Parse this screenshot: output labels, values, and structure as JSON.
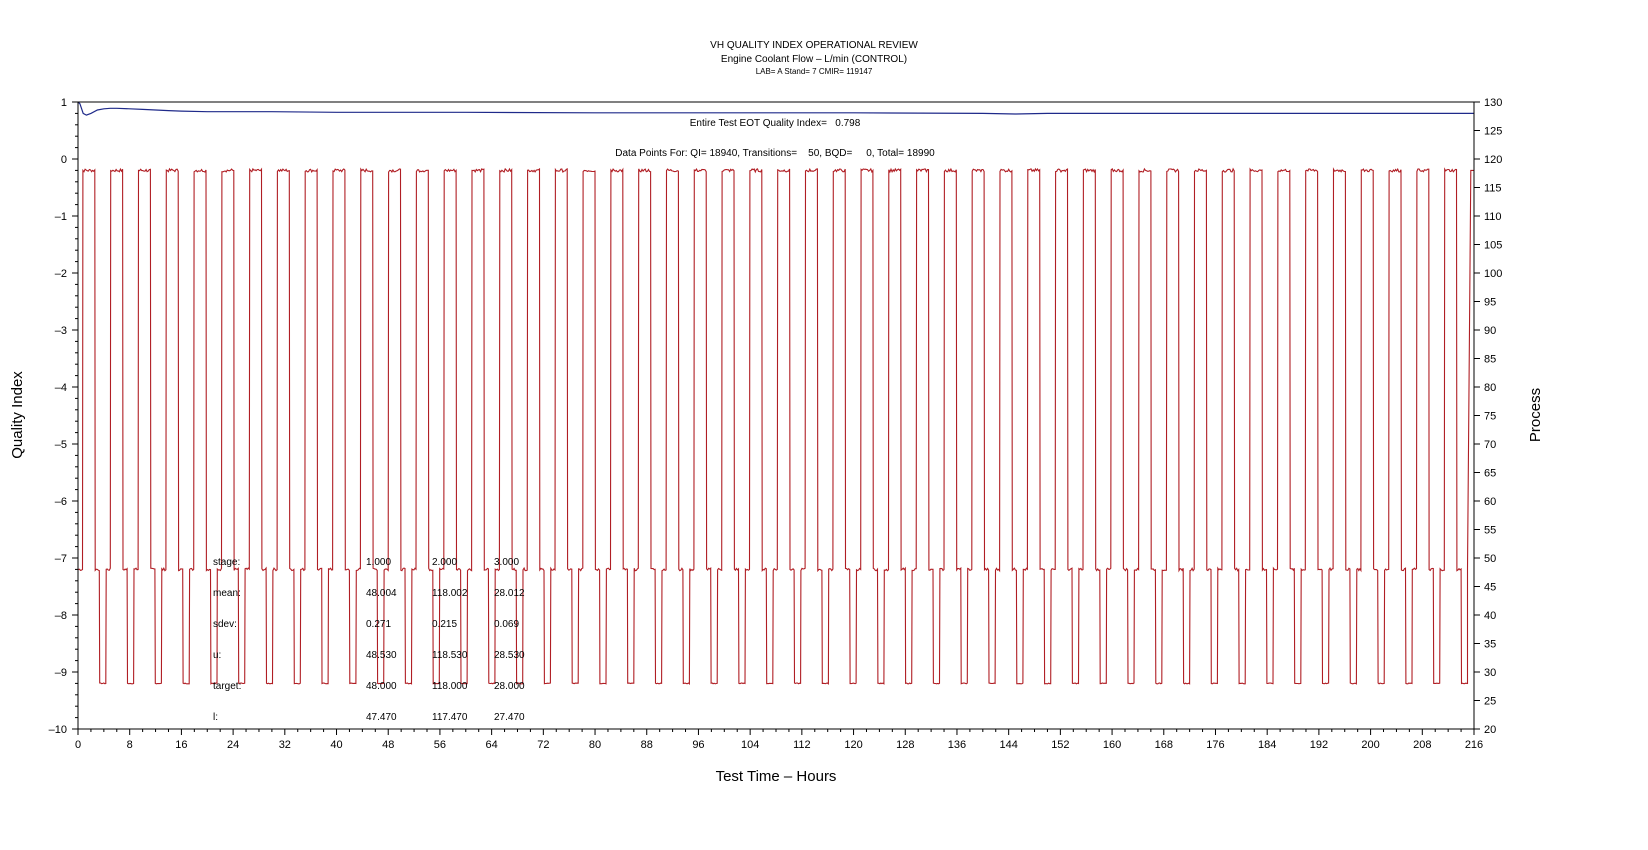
{
  "chart_data": {
    "type": "line",
    "title": "VH QUALITY INDEX OPERATIONAL REVIEW",
    "subtitle": "Engine Coolant Flow – L/min (CONTROL)",
    "subsubtitle": "LAB= A Stand= 7 CMIR= 119147",
    "xlabel": "Test Time – Hours",
    "ylabel_left": "Quality Index",
    "ylabel_right": "Process",
    "xlim": [
      0,
      216
    ],
    "ylim_left": [
      -10,
      1
    ],
    "ylim_right": [
      20,
      130
    ],
    "x_ticks": [
      0,
      8,
      16,
      24,
      32,
      40,
      48,
      56,
      64,
      72,
      80,
      88,
      96,
      104,
      112,
      120,
      128,
      136,
      144,
      152,
      160,
      168,
      176,
      184,
      192,
      200,
      208,
      216
    ],
    "y_ticks_left": [
      1,
      0,
      -1,
      -2,
      -3,
      -4,
      -5,
      -6,
      -7,
      -8,
      -9,
      -10
    ],
    "y_ticks_right": [
      130,
      125,
      120,
      115,
      110,
      105,
      100,
      95,
      90,
      85,
      80,
      75,
      70,
      65,
      60,
      55,
      50,
      45,
      40,
      35,
      30,
      25,
      20
    ],
    "grid": false,
    "annotations": {
      "eot_index": "Entire Test EOT Quality Index=   0.798",
      "data_points": "Data Points For: QI= 18940, Transitions=    50, BQD=     0, Total= 18990"
    },
    "stats": {
      "headers": [
        "stage:",
        "1.000",
        "2.000",
        "3.000"
      ],
      "rows": [
        [
          "mean:",
          "48.004",
          "118.002",
          "28.012"
        ],
        [
          "sdev:",
          "0.271",
          "0.215",
          "0.069"
        ],
        [
          "u:",
          "48.530",
          "118.530",
          "28.530"
        ],
        [
          "target:",
          "48.000",
          "118.000",
          "28.000"
        ],
        [
          "l:",
          "47.470",
          "117.470",
          "27.470"
        ]
      ]
    },
    "series": [
      {
        "axis": "left",
        "color": "#1f2a8a",
        "x": [
          0,
          0.3,
          0.8,
          1.3,
          2.0,
          3.0,
          4.0,
          5.0,
          6.0,
          8.0,
          10.0,
          12.0,
          14.0,
          16.0,
          20.0,
          30.0,
          40.0,
          50.0,
          60.0,
          80.0,
          100.0,
          120.0,
          140.0,
          145.0,
          150.0,
          160.0,
          180.0,
          200.0,
          216.0
        ],
        "y": [
          1.0,
          0.97,
          0.8,
          0.77,
          0.8,
          0.86,
          0.88,
          0.89,
          0.89,
          0.88,
          0.87,
          0.86,
          0.85,
          0.84,
          0.83,
          0.83,
          0.82,
          0.82,
          0.82,
          0.81,
          0.81,
          0.81,
          0.8,
          0.79,
          0.8,
          0.8,
          0.8,
          0.8,
          0.8
        ]
      },
      {
        "axis": "right",
        "color": "#b01e24",
        "profile": {
          "cycles": 50,
          "start": 0.0,
          "end": 215.0,
          "levels": [
            48,
            118,
            48,
            28
          ],
          "segment_hours": [
            0.7,
            1.9,
            0.7,
            1.0
          ]
        }
      }
    ]
  }
}
